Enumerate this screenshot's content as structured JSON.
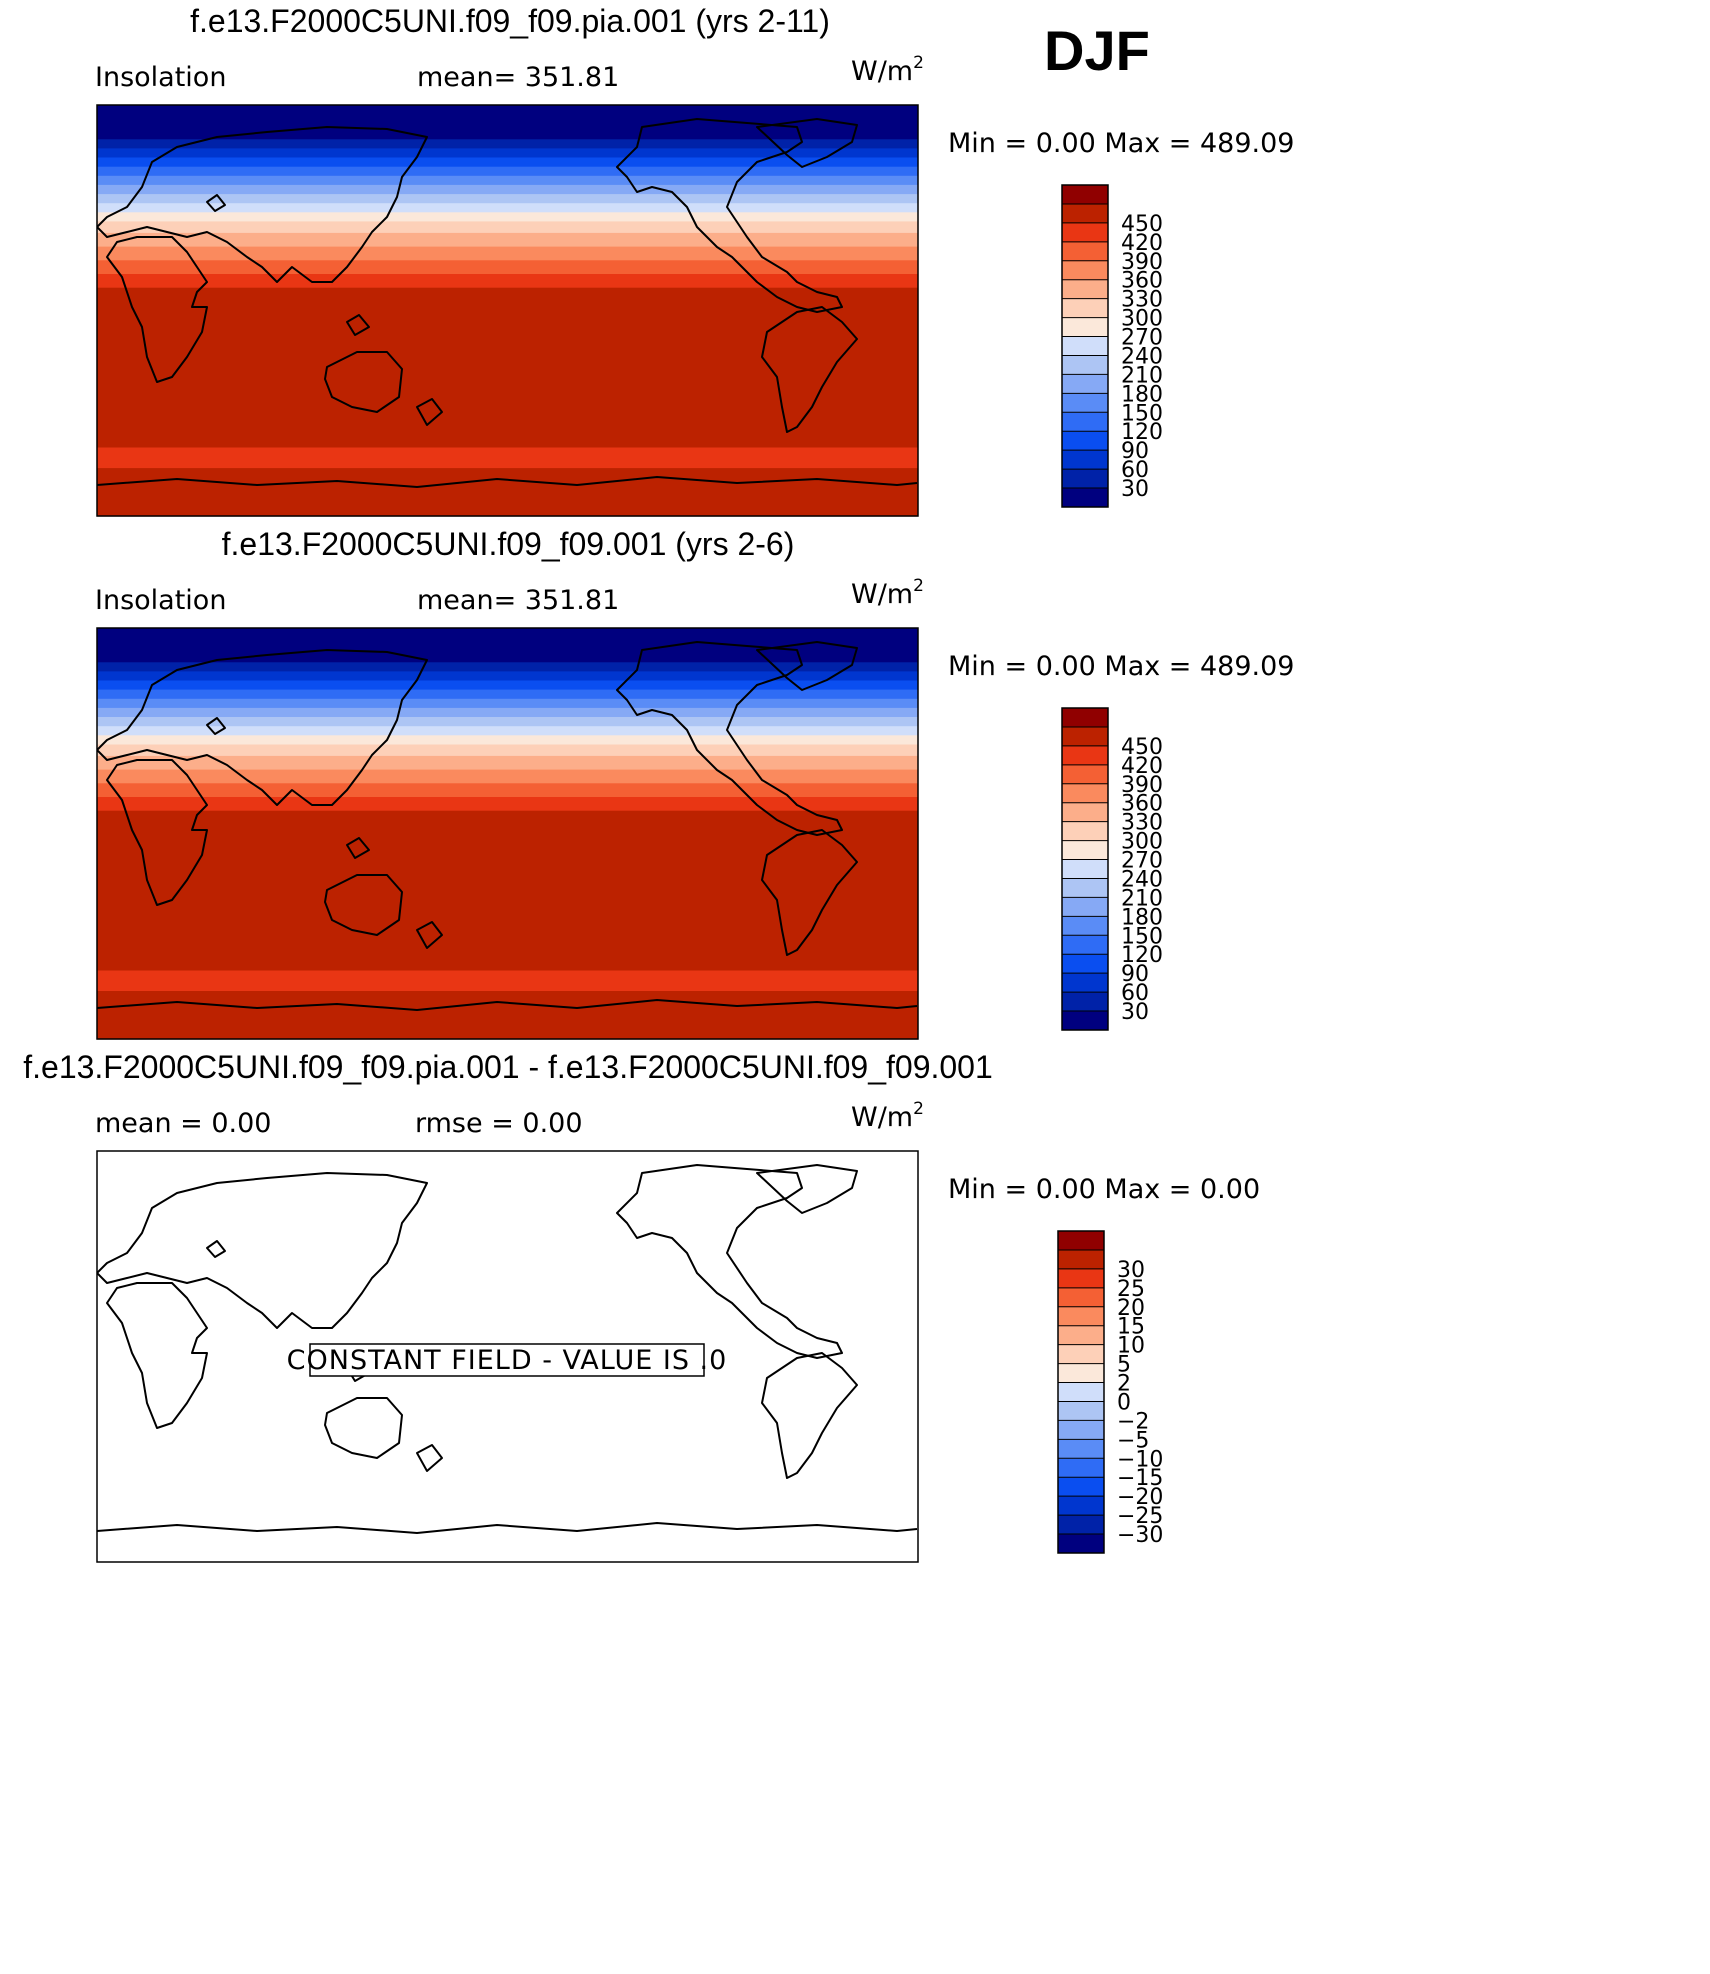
{
  "season": "DJF",
  "chart_data": [
    {
      "type": "heatmap",
      "title": "f.e13.F2000C5UNI.f09_f09.pia.001 (yrs 2-11)",
      "variable": "Insolation",
      "stat_text": "mean= 351.81",
      "units": "W/m",
      "units_exp": "2",
      "minmax_text": "Min =    0.00  Max  =  489.09",
      "min": 0.0,
      "max": 489.09,
      "levels": [
        30,
        60,
        90,
        120,
        150,
        180,
        210,
        240,
        270,
        300,
        330,
        360,
        390,
        420,
        450
      ],
      "colors": [
        "#00007f",
        "#0022a8",
        "#0036cf",
        "#0a4ef0",
        "#2f6cf5",
        "#5a8cf6",
        "#86a9f5",
        "#adc5f4",
        "#d0defa",
        "#fbe8da",
        "#fdd0b8",
        "#fcae8a",
        "#fa8a5e",
        "#f46034",
        "#e93614",
        "#bc2200",
        "#900000"
      ],
      "latitude_bands": [
        {
          "lat": [
            75,
            90
          ],
          "value": 0
        },
        {
          "lat": [
            71,
            75
          ],
          "value": 45
        },
        {
          "lat": [
            67,
            71
          ],
          "value": 75
        },
        {
          "lat": [
            63,
            67
          ],
          "value": 105
        },
        {
          "lat": [
            59,
            63
          ],
          "value": 135
        },
        {
          "lat": [
            55,
            59
          ],
          "value": 165
        },
        {
          "lat": [
            51,
            55
          ],
          "value": 195
        },
        {
          "lat": [
            47,
            51
          ],
          "value": 225
        },
        {
          "lat": [
            43,
            47
          ],
          "value": 255
        },
        {
          "lat": [
            39,
            43
          ],
          "value": 285
        },
        {
          "lat": [
            34,
            39
          ],
          "value": 315
        },
        {
          "lat": [
            28,
            34
          ],
          "value": 345
        },
        {
          "lat": [
            22,
            28
          ],
          "value": 375
        },
        {
          "lat": [
            16,
            22
          ],
          "value": 405
        },
        {
          "lat": [
            10,
            16
          ],
          "value": 435
        },
        {
          "lat": [
            -60,
            10
          ],
          "value": 465
        },
        {
          "lat": [
            -69,
            -60
          ],
          "value": 440
        },
        {
          "lat": [
            -90,
            -69
          ],
          "value": 470
        }
      ]
    },
    {
      "type": "heatmap",
      "title": "f.e13.F2000C5UNI.f09_f09.001 (yrs 2-6)",
      "variable": "Insolation",
      "stat_text": "mean= 351.81",
      "units": "W/m",
      "units_exp": "2",
      "minmax_text": "Min =    0.00  Max  =  489.09",
      "min": 0.0,
      "max": 489.09,
      "levels": [
        30,
        60,
        90,
        120,
        150,
        180,
        210,
        240,
        270,
        300,
        330,
        360,
        390,
        420,
        450
      ],
      "colors": [
        "#00007f",
        "#0022a8",
        "#0036cf",
        "#0a4ef0",
        "#2f6cf5",
        "#5a8cf6",
        "#86a9f5",
        "#adc5f4",
        "#d0defa",
        "#fbe8da",
        "#fdd0b8",
        "#fcae8a",
        "#fa8a5e",
        "#f46034",
        "#e93614",
        "#bc2200",
        "#900000"
      ],
      "latitude_bands": [
        {
          "lat": [
            75,
            90
          ],
          "value": 0
        },
        {
          "lat": [
            71,
            75
          ],
          "value": 45
        },
        {
          "lat": [
            67,
            71
          ],
          "value": 75
        },
        {
          "lat": [
            63,
            67
          ],
          "value": 105
        },
        {
          "lat": [
            59,
            63
          ],
          "value": 135
        },
        {
          "lat": [
            55,
            59
          ],
          "value": 165
        },
        {
          "lat": [
            51,
            55
          ],
          "value": 195
        },
        {
          "lat": [
            47,
            51
          ],
          "value": 225
        },
        {
          "lat": [
            43,
            47
          ],
          "value": 255
        },
        {
          "lat": [
            39,
            43
          ],
          "value": 285
        },
        {
          "lat": [
            34,
            39
          ],
          "value": 315
        },
        {
          "lat": [
            28,
            34
          ],
          "value": 345
        },
        {
          "lat": [
            22,
            28
          ],
          "value": 375
        },
        {
          "lat": [
            16,
            22
          ],
          "value": 405
        },
        {
          "lat": [
            10,
            16
          ],
          "value": 435
        },
        {
          "lat": [
            -60,
            10
          ],
          "value": 465
        },
        {
          "lat": [
            -69,
            -60
          ],
          "value": 440
        },
        {
          "lat": [
            -90,
            -69
          ],
          "value": 470
        }
      ]
    },
    {
      "type": "heatmap",
      "title": "f.e13.F2000C5UNI.f09_f09.pia.001 - f.e13.F2000C5UNI.f09_f09.001",
      "stat_text": "mean =     0.00",
      "rmse_text": "rmse =     0.00",
      "units": "W/m",
      "units_exp": "2",
      "minmax_text": "Min =    0.00  Max  =    0.00",
      "min": 0.0,
      "max": 0.0,
      "note": "CONSTANT FIELD - VALUE IS .0",
      "level_labels": [
        "−30",
        "−25",
        "−20",
        "−15",
        "−10",
        "−5",
        "−2",
        "0",
        "2",
        "5",
        "10",
        "15",
        "20",
        "25",
        "30"
      ],
      "colors": [
        "#00007f",
        "#0022a8",
        "#0036cf",
        "#0a4ef0",
        "#2f6cf5",
        "#5a8cf6",
        "#86a9f5",
        "#adc5f4",
        "#d0defa",
        "#fbe8da",
        "#fdd0b8",
        "#fcae8a",
        "#fa8a5e",
        "#f46034",
        "#e93614",
        "#bc2200",
        "#900000"
      ],
      "field_value": 0
    }
  ]
}
